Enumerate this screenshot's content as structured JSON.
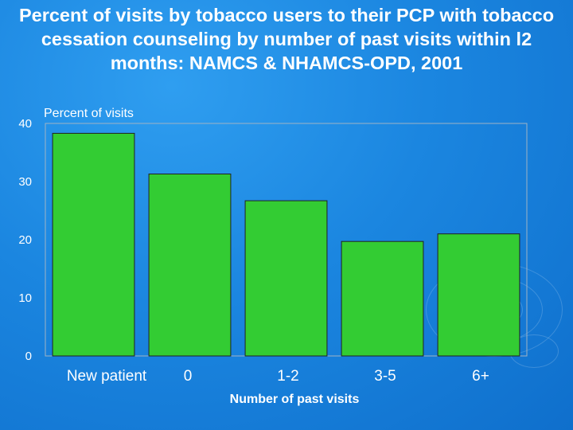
{
  "chart_data": {
    "type": "bar",
    "title": "Percent of visits by tobacco users to their PCP with tobacco cessation counseling by number of past visits within l2 months: NAMCS & NHAMCS-OPD, 2001",
    "ylabel": "Percent of visits",
    "xlabel": "Number of past visits",
    "categories": [
      "New patient",
      "0",
      "1-2",
      "3-5",
      "6+"
    ],
    "values": [
      38.3,
      31.3,
      26.7,
      19.7,
      21.0
    ],
    "ylim": [
      0,
      40
    ],
    "yticks": [
      "0",
      "10",
      "20",
      "30",
      "40"
    ],
    "grid": false,
    "colors": {
      "bar": "#33cc33",
      "bar_edge": "#222222",
      "plot_border": "#9fb3c4",
      "axis": "#555555"
    }
  }
}
